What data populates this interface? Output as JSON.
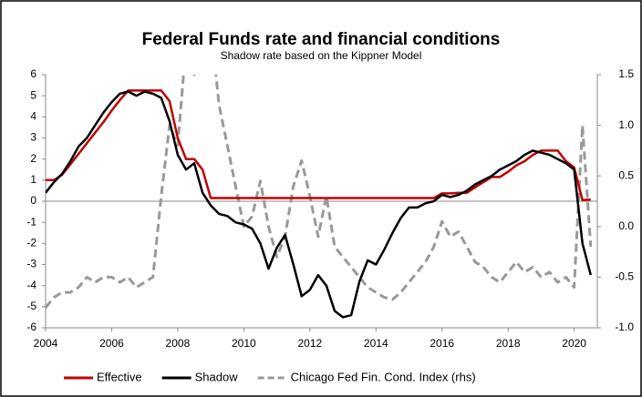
{
  "chart_data": {
    "type": "line",
    "title": "Federal Funds rate and financial conditions",
    "subtitle": "Shadow rate based on the Kippner Model",
    "x": [
      2004,
      2004.25,
      2004.5,
      2004.75,
      2005,
      2005.25,
      2005.5,
      2005.75,
      2006,
      2006.25,
      2006.5,
      2006.75,
      2007,
      2007.25,
      2007.5,
      2007.75,
      2008,
      2008.25,
      2008.5,
      2008.75,
      2009,
      2009.25,
      2009.5,
      2009.75,
      2010,
      2010.25,
      2010.5,
      2010.75,
      2011,
      2011.25,
      2011.5,
      2011.75,
      2012,
      2012.25,
      2012.5,
      2012.75,
      2013,
      2013.25,
      2013.5,
      2013.75,
      2014,
      2014.25,
      2014.5,
      2014.75,
      2015,
      2015.25,
      2015.5,
      2015.75,
      2016,
      2016.25,
      2016.5,
      2016.75,
      2017,
      2017.25,
      2017.5,
      2017.75,
      2018,
      2018.25,
      2018.5,
      2018.75,
      2019,
      2019.25,
      2019.5,
      2019.75,
      2020,
      2020.25,
      2020.5
    ],
    "series": [
      {
        "name": "Effective",
        "color": "#c00000",
        "dashed": false,
        "values": [
          1.0,
          1.0,
          1.25,
          1.75,
          2.25,
          2.75,
          3.25,
          3.75,
          4.3,
          4.8,
          5.25,
          5.25,
          5.25,
          5.25,
          5.25,
          4.75,
          3.0,
          2.0,
          2.0,
          1.5,
          0.15,
          0.15,
          0.15,
          0.15,
          0.15,
          0.15,
          0.15,
          0.15,
          0.15,
          0.15,
          0.15,
          0.15,
          0.15,
          0.15,
          0.15,
          0.15,
          0.15,
          0.15,
          0.15,
          0.15,
          0.15,
          0.15,
          0.15,
          0.15,
          0.15,
          0.15,
          0.15,
          0.15,
          0.37,
          0.37,
          0.4,
          0.4,
          0.66,
          0.9,
          1.15,
          1.15,
          1.4,
          1.7,
          1.9,
          2.2,
          2.4,
          2.4,
          2.4,
          1.9,
          1.6,
          0.05,
          0.08
        ]
      },
      {
        "name": "Shadow",
        "color": "#000000",
        "dashed": false,
        "values": [
          0.4,
          0.9,
          1.3,
          1.9,
          2.6,
          3.0,
          3.6,
          4.2,
          4.7,
          5.1,
          5.2,
          5.0,
          5.2,
          5.1,
          4.9,
          3.8,
          2.2,
          1.5,
          1.8,
          0.4,
          -0.2,
          -0.6,
          -0.7,
          -1.0,
          -1.1,
          -1.3,
          -2.0,
          -3.2,
          -2.2,
          -1.6,
          -3.0,
          -4.5,
          -4.2,
          -3.5,
          -4.0,
          -5.2,
          -5.5,
          -5.4,
          -3.8,
          -2.8,
          -3.0,
          -2.3,
          -1.5,
          -0.8,
          -0.3,
          -0.3,
          -0.1,
          0.0,
          0.3,
          0.2,
          0.3,
          0.5,
          0.8,
          1.0,
          1.2,
          1.5,
          1.7,
          1.9,
          2.2,
          2.4,
          2.3,
          2.2,
          2.0,
          1.8,
          1.5,
          -2.0,
          -3.5
        ]
      },
      {
        "name": "Chicago Fed Fin. Cond. Index (rhs)",
        "color": "#999999",
        "dashed": true,
        "axis": "y2",
        "values": [
          -0.8,
          -0.7,
          -0.65,
          -0.65,
          -0.6,
          -0.5,
          -0.55,
          -0.5,
          -0.5,
          -0.55,
          -0.5,
          -0.6,
          -0.55,
          -0.5,
          0.3,
          1.0,
          0.8,
          1.8,
          1.5,
          3.0,
          2.0,
          1.2,
          0.8,
          0.4,
          0.0,
          0.1,
          0.45,
          0.0,
          -0.3,
          -0.1,
          0.4,
          0.65,
          0.3,
          -0.1,
          0.3,
          -0.2,
          -0.3,
          -0.4,
          -0.5,
          -0.6,
          -0.65,
          -0.7,
          -0.72,
          -0.65,
          -0.55,
          -0.45,
          -0.35,
          -0.2,
          0.05,
          -0.1,
          -0.05,
          -0.2,
          -0.35,
          -0.4,
          -0.5,
          -0.55,
          -0.45,
          -0.35,
          -0.45,
          -0.4,
          -0.5,
          -0.45,
          -0.55,
          -0.5,
          -0.6,
          1.0,
          -0.2
        ]
      }
    ],
    "xlim": [
      2004,
      2020.7
    ],
    "xticks": [
      2004,
      2006,
      2008,
      2010,
      2012,
      2014,
      2016,
      2018,
      2020
    ],
    "ylim": [
      -6,
      6
    ],
    "yticks": [
      -6,
      -5,
      -4,
      -3,
      -2,
      -1,
      0,
      1,
      2,
      3,
      4,
      5,
      6
    ],
    "y2lim": [
      -1,
      1.5
    ],
    "y2ticks": [
      {
        "value": -1,
        "label": "-1.0"
      },
      {
        "value": -0.5,
        "label": "-0.5"
      },
      {
        "value": 0,
        "label": "0.0"
      },
      {
        "value": 0.5,
        "label": "0.5"
      },
      {
        "value": 1,
        "label": "1.0"
      },
      {
        "value": 1.5,
        "label": "1.5"
      }
    ],
    "legend": "bottom",
    "grid": false
  }
}
